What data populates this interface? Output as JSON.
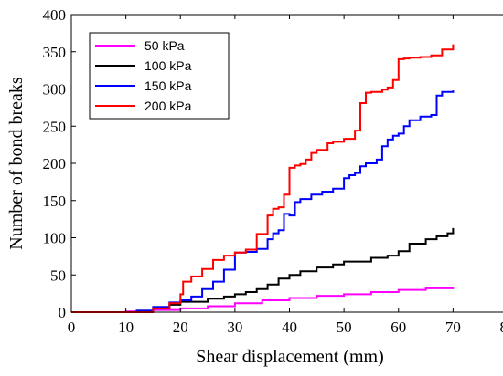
{
  "chart_data": {
    "type": "line",
    "xlabel": "Shear displacement (mm)",
    "ylabel": "Number of bond breaks",
    "xlim": [
      0,
      80
    ],
    "ylim": [
      0,
      400
    ],
    "x_ticks": [
      0,
      10,
      20,
      30,
      40,
      50,
      60,
      70,
      80
    ],
    "y_ticks": [
      0,
      50,
      100,
      150,
      200,
      250,
      300,
      350,
      400
    ],
    "grid": false,
    "legend_position": "top-left",
    "series": [
      {
        "name": "50 kPa",
        "color": "#ff00ff",
        "x": [
          0,
          6,
          10,
          15,
          20,
          25,
          30,
          35,
          40,
          45,
          50,
          55,
          60,
          65,
          70
        ],
        "y": [
          0,
          0,
          1,
          3,
          5,
          8,
          12,
          16,
          19,
          22,
          24,
          27,
          30,
          32,
          33
        ]
      },
      {
        "name": "100 kPa",
        "color": "#000000",
        "x": [
          0,
          8,
          12,
          15,
          18,
          20,
          25,
          28,
          30,
          32,
          34,
          36,
          38,
          40,
          42,
          45,
          48,
          50,
          55,
          58,
          60,
          62,
          65,
          67,
          69,
          70
        ],
        "y": [
          0,
          0,
          2,
          5,
          10,
          14,
          18,
          21,
          24,
          27,
          31,
          37,
          45,
          50,
          55,
          60,
          64,
          68,
          73,
          76,
          82,
          92,
          98,
          102,
          106,
          113
        ]
      },
      {
        "name": "150 kPa",
        "color": "#0000ff",
        "x": [
          0,
          8,
          12,
          15,
          18,
          20,
          22,
          24,
          26,
          28,
          30,
          32,
          34,
          36,
          37,
          38,
          39,
          40,
          41,
          42,
          44,
          46,
          48,
          50,
          51,
          52,
          53,
          54,
          56,
          57,
          58,
          59,
          60,
          61,
          62,
          64,
          66,
          67,
          68,
          70
        ],
        "y": [
          0,
          0,
          2,
          7,
          13,
          16,
          21,
          31,
          41,
          57,
          80,
          81,
          85,
          98,
          106,
          110,
          132,
          130,
          148,
          152,
          158,
          162,
          166,
          180,
          184,
          187,
          196,
          200,
          205,
          223,
          232,
          237,
          240,
          250,
          258,
          263,
          265,
          291,
          296,
          298
        ]
      },
      {
        "name": "200 kPa",
        "color": "#ff0000",
        "x": [
          0,
          10,
          15,
          18,
          20,
          20.5,
          22,
          24,
          26,
          28,
          30,
          32,
          34,
          36,
          37,
          38,
          39,
          40,
          41,
          42,
          43,
          44,
          45,
          47,
          48,
          50,
          52,
          53,
          54,
          55,
          57,
          58,
          59,
          60,
          61,
          62,
          64,
          66,
          68,
          70
        ],
        "y": [
          0,
          0,
          5,
          12,
          24,
          41,
          48,
          58,
          70,
          76,
          80,
          84,
          105,
          130,
          139,
          141,
          158,
          194,
          197,
          199,
          205,
          214,
          218,
          227,
          229,
          233,
          244,
          281,
          295,
          296,
          299,
          302,
          312,
          340,
          341,
          342,
          343,
          345,
          353,
          360
        ]
      }
    ]
  }
}
